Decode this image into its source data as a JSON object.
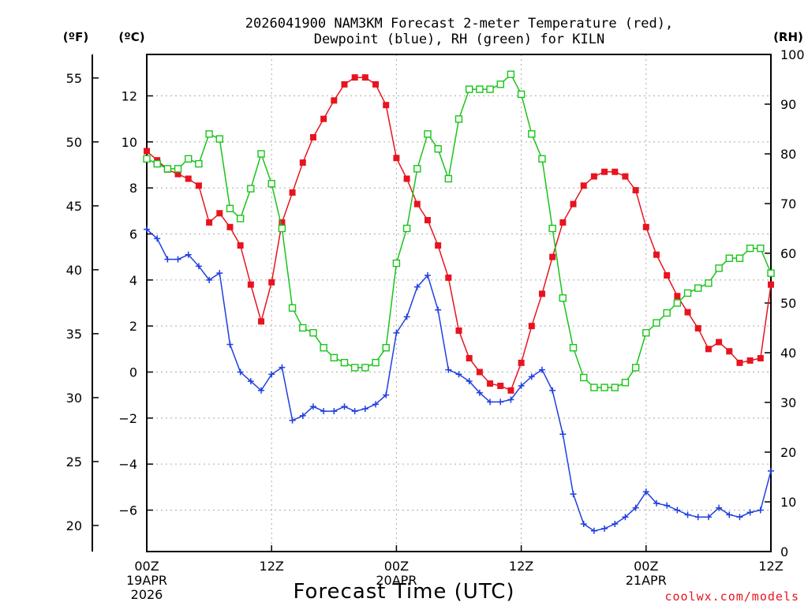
{
  "chart_data": {
    "type": "line",
    "title": "2026041900 NAM3KM Forecast 2-meter Temperature (red),",
    "subtitle": "Dewpoint (blue), RH (green) for KILN",
    "xlabel": "Forecast Time (UTC)",
    "credit": "coolwx.com/models",
    "units": {
      "fahrenheit": "(ºF)",
      "celsius": "(ºC)",
      "rh": "(RH)"
    },
    "x_hours": [
      0,
      1,
      2,
      3,
      4,
      5,
      6,
      7,
      8,
      9,
      10,
      11,
      12,
      13,
      14,
      15,
      16,
      17,
      18,
      19,
      20,
      21,
      22,
      23,
      24,
      25,
      26,
      27,
      28,
      29,
      30,
      31,
      32,
      33,
      34,
      35,
      36,
      37,
      38,
      39,
      40,
      41,
      42,
      43,
      44,
      45,
      46,
      47,
      48,
      49,
      50,
      51,
      52,
      53,
      54,
      55,
      56,
      57,
      58,
      59,
      60
    ],
    "x_ticks": [
      {
        "hour": 0,
        "labels": [
          "00Z",
          "19APR",
          "2026"
        ]
      },
      {
        "hour": 12,
        "labels": [
          "12Z"
        ]
      },
      {
        "hour": 24,
        "labels": [
          "00Z",
          "20APR"
        ]
      },
      {
        "hour": 36,
        "labels": [
          "12Z"
        ]
      },
      {
        "hour": 48,
        "labels": [
          "00Z",
          "21APR"
        ]
      },
      {
        "hour": 60,
        "labels": [
          "12Z"
        ]
      }
    ],
    "xlim": [
      0,
      60
    ],
    "ylim_celsius": [
      -7.8,
      13.8
    ],
    "ylim_rh": [
      0,
      100
    ],
    "celsius_ticks": [
      "12",
      "10",
      "8",
      "6",
      "4",
      "2",
      "0",
      "−2",
      "−4",
      "−6"
    ],
    "celsius_tick_values": [
      12,
      10,
      8,
      6,
      4,
      2,
      0,
      -2,
      -4,
      -6
    ],
    "fahrenheit_ticks": [
      "55",
      "50",
      "45",
      "40",
      "35",
      "30",
      "25",
      "20"
    ],
    "fahrenheit_tick_values": [
      55,
      50,
      45,
      40,
      35,
      30,
      25,
      20
    ],
    "rh_ticks": [
      "100",
      "90",
      "80",
      "70",
      "60",
      "50",
      "40",
      "30",
      "20",
      "10",
      "0"
    ],
    "rh_tick_values": [
      100,
      90,
      80,
      70,
      60,
      50,
      40,
      30,
      20,
      10,
      0
    ],
    "series": [
      {
        "name": "Temperature",
        "axis": "celsius",
        "color": "#e8131f",
        "marker": "filled-square",
        "values": [
          9.6,
          9.2,
          8.8,
          8.6,
          8.4,
          8.1,
          6.5,
          6.9,
          6.3,
          5.5,
          3.8,
          2.2,
          3.9,
          6.5,
          7.8,
          9.1,
          10.2,
          11.0,
          11.8,
          12.5,
          12.8,
          12.8,
          12.5,
          11.6,
          9.3,
          8.4,
          7.3,
          6.6,
          5.5,
          4.1,
          1.8,
          0.6,
          0.0,
          -0.5,
          -0.6,
          -0.8,
          0.4,
          2.0,
          3.4,
          5.0,
          6.5,
          7.3,
          8.1,
          8.5,
          8.7,
          8.7,
          8.5,
          7.9,
          6.3,
          5.1,
          4.2,
          3.3,
          2.6,
          1.9,
          1.0,
          1.3,
          0.9,
          0.4,
          0.5,
          0.6,
          3.8
        ]
      },
      {
        "name": "Dewpoint",
        "axis": "celsius",
        "color": "#1f3fe0",
        "marker": "plus",
        "values": [
          6.2,
          5.8,
          4.9,
          4.9,
          5.1,
          4.6,
          4.0,
          4.3,
          1.2,
          0.0,
          -0.4,
          -0.8,
          -0.1,
          0.2,
          -2.1,
          -1.9,
          -1.5,
          -1.7,
          -1.7,
          -1.5,
          -1.7,
          -1.6,
          -1.4,
          -1.0,
          1.7,
          2.4,
          3.7,
          4.2,
          2.7,
          0.1,
          -0.1,
          -0.4,
          -0.9,
          -1.3,
          -1.3,
          -1.2,
          -0.6,
          -0.2,
          0.1,
          -0.8,
          -2.7,
          -5.3,
          -6.6,
          -6.9,
          -6.8,
          -6.6,
          -6.3,
          -5.9,
          -5.2,
          -5.7,
          -5.8,
          -6.0,
          -6.2,
          -6.3,
          -6.3,
          -5.9,
          -6.2,
          -6.3,
          -6.1,
          -6.0,
          -4.3
        ]
      },
      {
        "name": "RH",
        "axis": "rh",
        "color": "#19c41a",
        "marker": "open-square",
        "values": [
          79,
          78,
          77,
          77,
          79,
          78,
          84,
          83,
          69,
          67,
          73,
          80,
          74,
          65,
          49,
          45,
          44,
          41,
          39,
          38,
          37,
          37,
          38,
          41,
          58,
          65,
          77,
          84,
          81,
          75,
          87,
          93,
          93,
          93,
          94,
          96,
          92,
          84,
          79,
          65,
          51,
          41,
          35,
          33,
          33,
          33,
          34,
          37,
          44,
          46,
          48,
          50,
          52,
          53,
          54,
          57,
          59,
          59,
          61,
          61,
          56
        ]
      }
    ]
  }
}
